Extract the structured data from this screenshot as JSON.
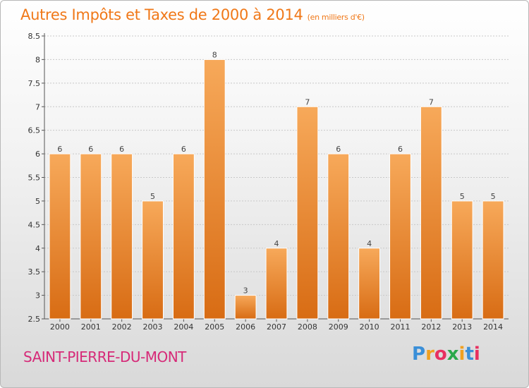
{
  "header": {
    "title": "Autres Impôts et Taxes de 2000 à 2014",
    "unit": "(en milliers d'€)"
  },
  "footer": {
    "commune": "SAINT-PIERRE-DU-MONT",
    "logo_letters": [
      "P",
      "r",
      "o",
      "x",
      "i",
      "t",
      "i"
    ],
    "logo_colors": [
      "#3a8fd8",
      "#f0a020",
      "#e83060",
      "#2aa84a",
      "#f0a020",
      "#3a8fd8",
      "#e83060"
    ]
  },
  "colors": {
    "bar_light": "#f7a95a",
    "bar_dark": "#d86c14",
    "accent": "#f07818"
  },
  "chart_data": {
    "type": "bar",
    "title": "Autres Impôts et Taxes de 2000 à 2014",
    "categories": [
      "2000",
      "2001",
      "2002",
      "2003",
      "2004",
      "2005",
      "2006",
      "2007",
      "2008",
      "2009",
      "2010",
      "2011",
      "2012",
      "2013",
      "2014"
    ],
    "values": [
      6,
      6,
      6,
      5,
      6,
      8,
      3,
      4,
      7,
      6,
      4,
      6,
      7,
      5,
      5
    ],
    "ylim": [
      2.5,
      8.5
    ],
    "yticks": [
      2.5,
      3,
      3.5,
      4,
      4.5,
      5,
      5.5,
      6,
      6.5,
      7,
      7.5,
      8,
      8.5
    ],
    "grid": true,
    "xlabel": "",
    "ylabel": ""
  }
}
